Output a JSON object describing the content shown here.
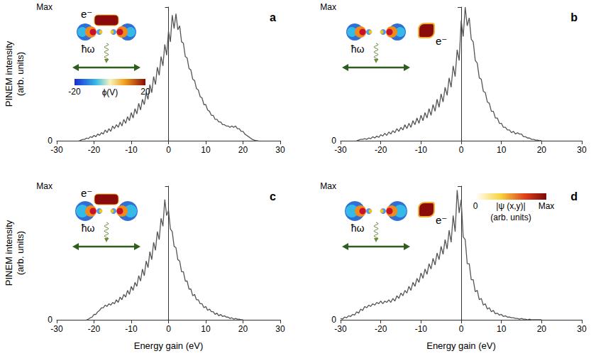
{
  "chart_data": [
    {
      "type": "line",
      "title": "a",
      "color": "#555555",
      "xlim": [
        -30,
        30
      ],
      "xticks": [
        -30,
        -20,
        -10,
        0,
        10,
        20,
        30
      ],
      "ylim": [
        0,
        100
      ],
      "yticks": [
        0,
        {
          "value": 100,
          "label": "Max"
        }
      ],
      "ylabel": "PINEM intensity (arb. units)",
      "annotations": [
        "e⁻",
        "ħω"
      ],
      "colorbar": {
        "title": "ϕ(V)",
        "range": [
          -20,
          20
        ],
        "ticks": [
          -20,
          20
        ]
      },
      "x": [
        -24,
        -23.5,
        -23,
        -22.5,
        -22,
        -21.5,
        -21,
        -20.5,
        -20,
        -19.5,
        -19,
        -18.5,
        -18,
        -17.5,
        -17,
        -16.5,
        -16,
        -15.5,
        -15,
        -14.5,
        -14,
        -13.5,
        -13,
        -12.5,
        -12,
        -11.5,
        -11,
        -10.5,
        -10,
        -9.5,
        -9,
        -8.5,
        -8,
        -7.5,
        -7,
        -6.5,
        -6,
        -5.5,
        -5,
        -4.5,
        -4,
        -3.5,
        -3,
        -2.5,
        -2,
        -1.5,
        -1,
        -0.5,
        0,
        0.5,
        1,
        1.5,
        2,
        2.5,
        3,
        3.5,
        4,
        4.5,
        5,
        5.5,
        6,
        6.5,
        7,
        7.5,
        8,
        8.5,
        9,
        9.5,
        10,
        10.5,
        11,
        11.5,
        12,
        12.5,
        13,
        13.5,
        14,
        14.5,
        15,
        15.5,
        16,
        16.5,
        17,
        17.5,
        18,
        18.5,
        19,
        19.5,
        20,
        20.5,
        21,
        21.5,
        22,
        22.5,
        23,
        23.5,
        24
      ],
      "values": [
        0,
        0.5,
        1,
        1,
        2,
        1.5,
        3,
        2.5,
        4,
        3,
        5,
        4,
        6,
        5,
        8,
        6,
        9,
        7,
        11,
        9,
        12,
        10,
        14,
        11,
        16,
        13,
        18,
        15,
        21,
        17,
        24,
        20,
        28,
        23,
        31,
        27,
        36,
        31,
        42,
        36,
        48,
        42,
        55,
        49,
        63,
        56,
        72,
        64,
        82,
        74,
        94,
        84,
        95,
        83,
        86,
        74,
        73,
        63,
        62,
        54,
        53,
        46,
        45,
        39,
        38,
        33,
        32,
        27,
        27,
        23,
        22,
        19,
        19,
        16,
        16,
        14,
        14,
        12,
        12,
        11,
        11,
        10,
        11,
        10,
        11,
        9,
        9,
        7,
        7,
        5,
        4,
        3,
        2,
        1,
        0.5,
        0,
        0
      ]
    },
    {
      "type": "line",
      "title": "b",
      "color": "#555555",
      "xlim": [
        -30,
        30
      ],
      "xticks": [
        -30,
        -20,
        -10,
        0,
        10,
        20,
        30
      ],
      "ylim": [
        0,
        100
      ],
      "yticks": [
        0,
        {
          "value": 100,
          "label": "Max"
        }
      ],
      "annotations": [
        "e⁻",
        "ħω"
      ],
      "x": [
        -26,
        -25.5,
        -25,
        -24.5,
        -24,
        -23.5,
        -23,
        -22.5,
        -22,
        -21.5,
        -21,
        -20.5,
        -20,
        -19.5,
        -19,
        -18.5,
        -18,
        -17.5,
        -17,
        -16.5,
        -16,
        -15.5,
        -15,
        -14.5,
        -14,
        -13.5,
        -13,
        -12.5,
        -12,
        -11.5,
        -11,
        -10.5,
        -10,
        -9.5,
        -9,
        -8.5,
        -8,
        -7.5,
        -7,
        -6.5,
        -6,
        -5.5,
        -5,
        -4.5,
        -4,
        -3.5,
        -3,
        -2.5,
        -2,
        -1.5,
        -1,
        -0.5,
        0,
        0.5,
        1,
        1.5,
        2,
        2.5,
        3,
        3.5,
        4,
        4.5,
        5,
        5.5,
        6,
        6.5,
        7,
        7.5,
        8,
        8.5,
        9,
        9.5,
        10,
        10.5,
        11,
        11.5,
        12,
        12.5,
        13,
        13.5,
        14,
        14.5,
        15,
        15.5,
        16,
        16.5,
        17,
        17.5,
        18,
        18.5,
        19,
        19.5,
        20
      ],
      "values": [
        0,
        0.5,
        1,
        1,
        1.5,
        1,
        2,
        1.5,
        3,
        2,
        3.5,
        2.5,
        4.5,
        3.5,
        5.5,
        4,
        6.5,
        5,
        7.5,
        6,
        9,
        7,
        10,
        8,
        12,
        9,
        13,
        10,
        15,
        12,
        17,
        13,
        19,
        15,
        21,
        17,
        24,
        19,
        27,
        22,
        31,
        25,
        35,
        29,
        40,
        34,
        47,
        40,
        56,
        48,
        68,
        60,
        90,
        78,
        100,
        86,
        92,
        76,
        74,
        60,
        58,
        47,
        46,
        37,
        36,
        29,
        28,
        22,
        22,
        17,
        17,
        13,
        13,
        10,
        10,
        8,
        8,
        6,
        7,
        5,
        6,
        5,
        5,
        3,
        3,
        2,
        2,
        1,
        1,
        0.5,
        0.5,
        0,
        0
      ]
    },
    {
      "type": "line",
      "title": "c",
      "color": "#555555",
      "xlim": [
        -30,
        30
      ],
      "xticks": [
        -30,
        -20,
        -10,
        0,
        10,
        20,
        30
      ],
      "ylim": [
        0,
        100
      ],
      "yticks": [
        0,
        {
          "value": 100,
          "label": "Max"
        }
      ],
      "ylabel": "PINEM intensity (arb. units)",
      "xlabel": "Energy gain (eV)",
      "annotations": [
        "e⁻",
        "ħω"
      ],
      "x": [
        -22,
        -21.5,
        -21,
        -20.5,
        -20,
        -19.5,
        -19,
        -18.5,
        -18,
        -17.5,
        -17,
        -16.5,
        -16,
        -15.5,
        -15,
        -14.5,
        -14,
        -13.5,
        -13,
        -12.5,
        -12,
        -11.5,
        -11,
        -10.5,
        -10,
        -9.5,
        -9,
        -8.5,
        -8,
        -7.5,
        -7,
        -6.5,
        -6,
        -5.5,
        -5,
        -4.5,
        -4,
        -3.5,
        -3,
        -2.5,
        -2,
        -1.5,
        -1,
        -0.5,
        0,
        0.5,
        1,
        1.5,
        2,
        2.5,
        3,
        3.5,
        4,
        4.5,
        5,
        5.5,
        6,
        6.5,
        7,
        7.5,
        8,
        8.5,
        9,
        9.5,
        10,
        10.5,
        11,
        11.5,
        12,
        12.5,
        13,
        13.5,
        14,
        14.5,
        15,
        15.5,
        16,
        16.5,
        17,
        17.5,
        18,
        18.5,
        19,
        19.5,
        20
      ],
      "values": [
        0,
        0.5,
        1.5,
        2,
        4,
        4,
        6,
        7,
        9,
        9,
        11,
        10,
        12,
        11,
        13,
        12,
        15,
        13,
        17,
        15,
        19,
        17,
        22,
        19,
        25,
        22,
        28,
        25,
        33,
        29,
        38,
        33,
        44,
        39,
        51,
        45,
        58,
        52,
        66,
        60,
        76,
        70,
        90,
        78,
        82,
        68,
        66,
        55,
        54,
        45,
        44,
        36,
        36,
        29,
        29,
        23,
        23,
        18,
        19,
        15,
        15,
        12,
        12,
        9,
        10,
        7,
        8,
        6,
        6,
        4,
        5,
        3,
        4,
        2.5,
        3,
        2,
        2,
        1,
        1.5,
        0.5,
        1,
        0.5,
        0.5,
        0,
        0
      ]
    },
    {
      "type": "line",
      "title": "d",
      "color": "#555555",
      "xlim": [
        -30,
        30
      ],
      "xticks": [
        -30,
        -20,
        -10,
        0,
        10,
        20,
        30
      ],
      "ylim": [
        0,
        100
      ],
      "yticks": [
        0,
        {
          "value": 100,
          "label": "Max"
        }
      ],
      "xlabel": "Energy gain (eV)",
      "annotations": [
        "e⁻",
        "ħω"
      ],
      "colorbar": {
        "title": "|ψ (x,y)|",
        "subtitle": "(arb. units)",
        "range": [
          0,
          1
        ],
        "ticks": [
          0,
          {
            "value": 1,
            "label": "Max"
          }
        ]
      },
      "x": [
        -30,
        -29.5,
        -29,
        -28.5,
        -28,
        -27.5,
        -27,
        -26.5,
        -26,
        -25.5,
        -25,
        -24.5,
        -24,
        -23.5,
        -23,
        -22.5,
        -22,
        -21.5,
        -21,
        -20.5,
        -20,
        -19.5,
        -19,
        -18.5,
        -18,
        -17.5,
        -17,
        -16.5,
        -16,
        -15.5,
        -15,
        -14.5,
        -14,
        -13.5,
        -13,
        -12.5,
        -12,
        -11.5,
        -11,
        -10.5,
        -10,
        -9.5,
        -9,
        -8.5,
        -8,
        -7.5,
        -7,
        -6.5,
        -6,
        -5.5,
        -5,
        -4.5,
        -4,
        -3.5,
        -3,
        -2.5,
        -2,
        -1.5,
        -1,
        -0.5,
        0,
        0.5,
        1,
        1.5,
        2,
        2.5,
        3,
        3.5,
        4,
        4.5,
        5,
        5.5,
        6,
        6.5,
        7,
        7.5,
        8,
        8.5,
        9,
        9.5,
        10,
        10.5,
        11,
        11.5,
        12,
        12.5,
        13,
        13.5,
        14,
        14.5,
        15,
        15.5,
        16,
        16.5,
        17,
        17.5,
        18,
        18.5,
        19,
        19.5,
        20
      ],
      "values": [
        1,
        0.5,
        2,
        1.5,
        3,
        2.5,
        4,
        3.5,
        6,
        5,
        8,
        7,
        10,
        9,
        11,
        10,
        12,
        11,
        13,
        12,
        14,
        12,
        14,
        13,
        15,
        13,
        16,
        14,
        18,
        16,
        20,
        18,
        22,
        20,
        25,
        22,
        28,
        25,
        31,
        28,
        35,
        31,
        38,
        34,
        42,
        38,
        46,
        41,
        50,
        45,
        55,
        49,
        60,
        53,
        67,
        58,
        78,
        66,
        97,
        80,
        90,
        62,
        60,
        42,
        42,
        30,
        30,
        21,
        22,
        15,
        16,
        11,
        12,
        8,
        9,
        6,
        7,
        4.5,
        5,
        3.5,
        4,
        2.5,
        3,
        2,
        2,
        1.5,
        1.5,
        1,
        1,
        0.5,
        1,
        0.5,
        0.5,
        0,
        0.5,
        0,
        0,
        0,
        0,
        0,
        0
      ]
    }
  ]
}
